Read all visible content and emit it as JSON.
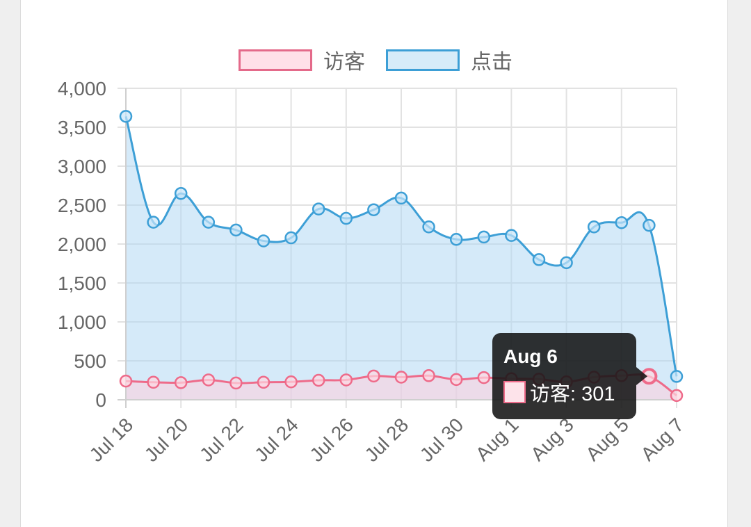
{
  "chart_data": {
    "type": "line",
    "x": [
      "Jul 18",
      "Jul 19",
      "Jul 20",
      "Jul 21",
      "Jul 22",
      "Jul 23",
      "Jul 24",
      "Jul 25",
      "Jul 26",
      "Jul 27",
      "Jul 28",
      "Jul 29",
      "Jul 30",
      "Jul 31",
      "Aug 1",
      "Aug 2",
      "Aug 3",
      "Aug 4",
      "Aug 5",
      "Aug 6",
      "Aug 7"
    ],
    "x_tick_labels": [
      "Jul 18",
      "Jul 20",
      "Jul 22",
      "Jul 24",
      "Jul 26",
      "Jul 28",
      "Jul 30",
      "Aug 1",
      "Aug 3",
      "Aug 5",
      "Aug 7"
    ],
    "y_ticks": [
      "0",
      "500",
      "1,000",
      "1,500",
      "2,000",
      "2,500",
      "3,000",
      "3,500",
      "4,000"
    ],
    "ylim": [
      0,
      4000
    ],
    "grid": true,
    "legend_position": "top",
    "series": [
      {
        "name": "访客",
        "color": "#ee6b8a",
        "fill": "rgba(255,205,220,0.55)",
        "values": [
          240,
          225,
          220,
          255,
          215,
          225,
          230,
          250,
          255,
          305,
          290,
          310,
          260,
          285,
          270,
          265,
          230,
          290,
          310,
          301,
          55
        ]
      },
      {
        "name": "点击",
        "color": "#3d9fd6",
        "fill": "rgba(171,214,244,0.5)",
        "values": [
          3640,
          2280,
          2650,
          2280,
          2180,
          2040,
          2080,
          2450,
          2330,
          2440,
          2590,
          2220,
          2060,
          2090,
          2110,
          1800,
          1760,
          2220,
          2275,
          2240,
          300
        ]
      }
    ],
    "tooltip": {
      "title": "Aug 6",
      "series": "访客",
      "text": "访客: 301",
      "color": "#ee6b8a",
      "swatch_fill": "#fde3ea"
    }
  }
}
